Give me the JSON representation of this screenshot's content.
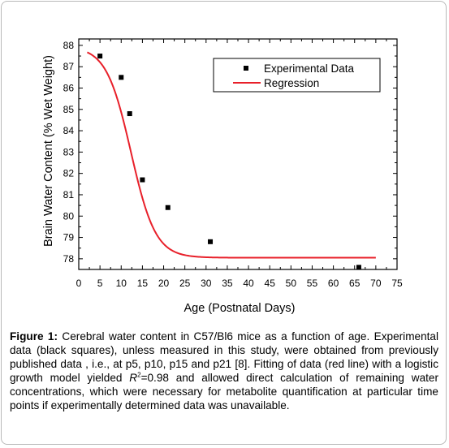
{
  "chart_data": {
    "type": "scatter",
    "xlabel": "Age (Postnatal Days)",
    "ylabel": "Brain Water Content (% Wet Weight)",
    "xlim": [
      0,
      75
    ],
    "ylim": [
      77.5,
      88.3
    ],
    "xticks": [
      0,
      5,
      10,
      15,
      20,
      25,
      30,
      35,
      40,
      45,
      50,
      55,
      60,
      65,
      70,
      75
    ],
    "yticks": [
      78,
      79,
      80,
      81,
      82,
      83,
      84,
      85,
      86,
      87,
      88
    ],
    "grid": false,
    "legend_position": "top-right",
    "series": [
      {
        "name": "Experimental Data",
        "kind": "scatter",
        "marker": "square",
        "color": "#000000",
        "points": [
          {
            "x": 5,
            "y": 87.5
          },
          {
            "x": 10,
            "y": 86.5
          },
          {
            "x": 12,
            "y": 84.8
          },
          {
            "x": 15,
            "y": 81.7
          },
          {
            "x": 21,
            "y": 80.4
          },
          {
            "x": 31,
            "y": 78.8
          },
          {
            "x": 66,
            "y": 77.6
          }
        ]
      },
      {
        "name": "Regression",
        "kind": "line",
        "color": "#e8202a",
        "model": "logistic",
        "x_range": [
          2,
          70
        ],
        "params": {
          "bottom": 78.05,
          "amplitude": 9.9,
          "midpoint": 12.3,
          "scale": 2.9
        }
      }
    ]
  },
  "caption": {
    "label": "Figure 1:",
    "text_1": " Cerebral water content in C57/Bl6 mice as a function of age. Experimental data (black squares), unless measured in this study, were obtained from previously published data , i.e., at p5, p10, p15 and p21 [8]. Fitting of data (red line) with a logistic growth model yielded ",
    "r2_symbol": "R",
    "r2_exponent": "2",
    "text_2": "=0.98 and allowed direct calculation of remaining water concentrations, which were necessary for metabolite quantification at particular time points if experimentally determined data was unavailable."
  }
}
